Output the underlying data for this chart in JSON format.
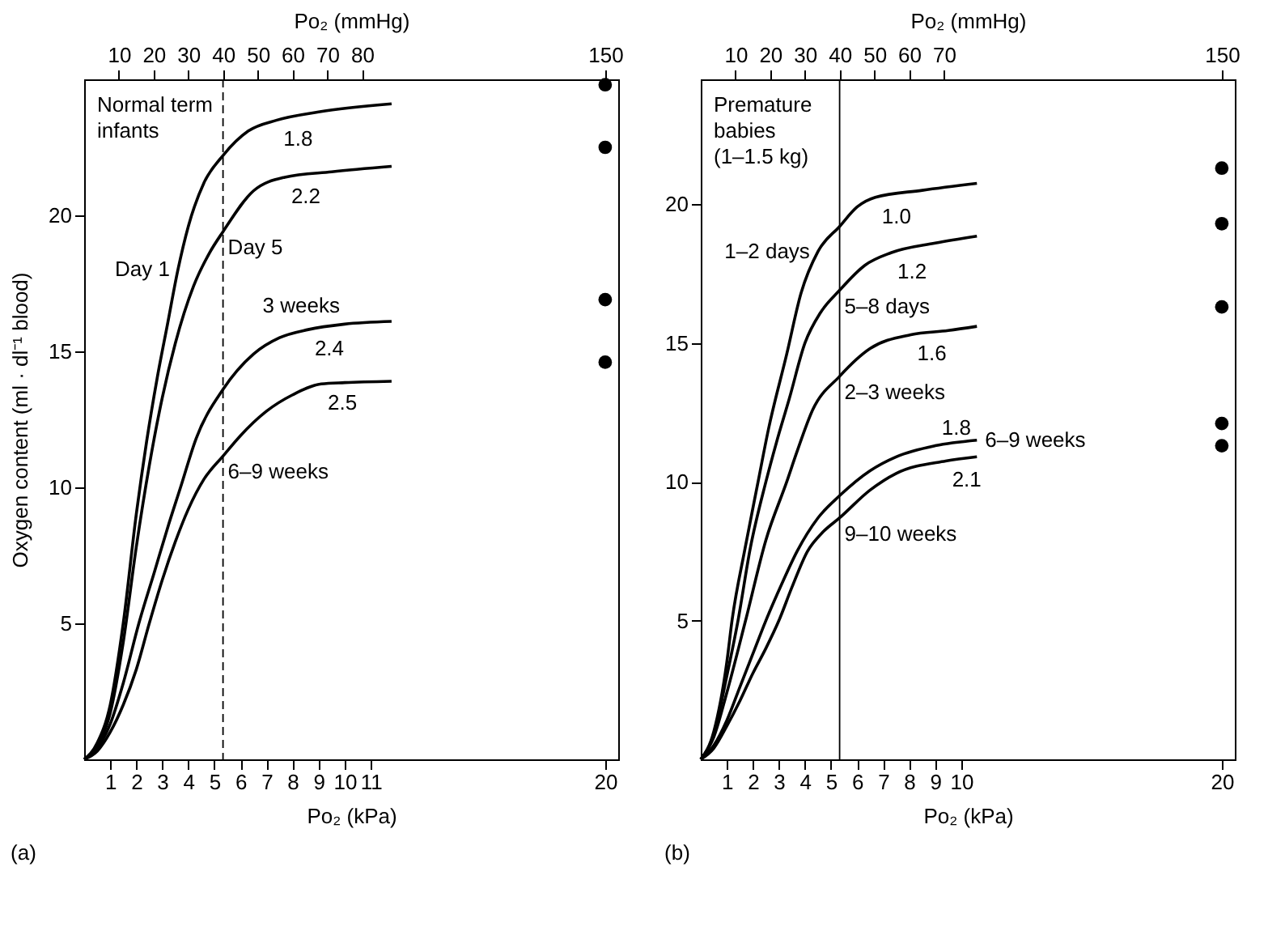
{
  "chart_data": [
    {
      "type": "line",
      "title": "(a)",
      "xlabel": "Po₂ (kPa)",
      "x2label": "Po₂ (mmHg)",
      "ylabel": "Oxygen content (ml · dl⁻¹ blood)",
      "xlim": [
        0,
        20.5
      ],
      "xticks": [
        1,
        2,
        3,
        4,
        5,
        6,
        7,
        8,
        9,
        10,
        11,
        20
      ],
      "x2lim": [
        0,
        153.75
      ],
      "x2ticks": [
        10,
        20,
        30,
        40,
        50,
        60,
        70,
        80,
        150
      ],
      "ylim": [
        0,
        25
      ],
      "yticks": [
        5,
        10,
        15,
        20
      ],
      "grid": false,
      "legend": false,
      "marker": "none",
      "line_style": "solid",
      "series": [
        {
          "name": "Day 1",
          "color": "#000000",
          "x": [
            0,
            0.5,
            1,
            1.5,
            2,
            2.4,
            2.8,
            3.2,
            3.6,
            4,
            4.6,
            5.33,
            6.3,
            7.4,
            9,
            11.8
          ],
          "values": [
            0,
            0.6,
            2,
            5,
            9,
            11.7,
            14,
            16,
            18,
            19.6,
            21.2,
            22.2,
            23.1,
            23.5,
            23.8,
            24.1
          ]
        },
        {
          "name": "Day 5",
          "color": "#000000",
          "x": [
            0,
            0.5,
            1,
            1.5,
            2,
            2.5,
            3,
            3.5,
            4.2,
            4.8,
            5.33,
            6.5,
            7.7,
            9.5,
            11.8
          ],
          "values": [
            0,
            0.5,
            1.7,
            4.3,
            7.8,
            10.8,
            13.3,
            15.3,
            17.4,
            18.6,
            19.4,
            20.9,
            21.4,
            21.6,
            21.8
          ]
        },
        {
          "name": "3 weeks",
          "color": "#000000",
          "x": [
            0,
            0.5,
            1,
            1.5,
            2.1,
            2.7,
            3.2,
            3.7,
            4.3,
            5.33,
            6.5,
            7.5,
            8.6,
            10,
            11.8
          ],
          "values": [
            0,
            0.4,
            1.3,
            2.8,
            5,
            6.9,
            8.5,
            10,
            11.8,
            13.6,
            14.9,
            15.5,
            15.8,
            16,
            16.1
          ]
        },
        {
          "name": "6–9 weeks",
          "color": "#000000",
          "x": [
            0,
            0.5,
            1,
            1.5,
            2,
            2.5,
            3,
            3.5,
            4,
            4.6,
            5.33,
            6,
            7,
            8,
            9.1,
            10,
            11.8
          ],
          "values": [
            0,
            0.3,
            1,
            2,
            3.3,
            5,
            6.6,
            8,
            9.2,
            10.3,
            11.15,
            11.9,
            12.8,
            13.4,
            13.8,
            13.85,
            13.9
          ]
        },
        {
          "type": "scatter",
          "marker": "circle",
          "color": "#000000",
          "x": [
            20,
            20,
            20,
            20
          ],
          "values": [
            24.8,
            22.5,
            16.9,
            14.6
          ]
        }
      ],
      "ref_lines": [
        {
          "axis": "x",
          "value": 5.33,
          "color": "#000000",
          "line_style": "dashed"
        }
      ],
      "annotations": [
        "Normal term infants",
        {
          "text": "1.8",
          "x": 7.4,
          "y": 23.5
        },
        {
          "text": "2.2",
          "x": 7.7,
          "y": 21.4
        },
        {
          "text": "2.4",
          "x": 8.6,
          "y": 15.8
        },
        {
          "text": "2.5",
          "x": 9.1,
          "y": 13.8
        }
      ]
    },
    {
      "type": "line",
      "title": "(b)",
      "xlabel": "Po₂ (kPa)",
      "x2label": "Po₂ (mmHg)",
      "xlim": [
        0,
        20.5
      ],
      "xticks": [
        1,
        2,
        3,
        4,
        5,
        6,
        7,
        8,
        9,
        10,
        20
      ],
      "x2lim": [
        0,
        153.75
      ],
      "x2ticks": [
        10,
        20,
        30,
        40,
        50,
        60,
        70,
        150
      ],
      "ylim": [
        0,
        24.5
      ],
      "yticks": [
        5,
        10,
        15,
        20
      ],
      "grid": false,
      "legend": false,
      "marker": "none",
      "line_style": "solid",
      "series": [
        {
          "name": "1–2 days",
          "color": "#000000",
          "x": [
            0,
            0.5,
            1,
            1.2,
            1.7,
            2.2,
            2.6,
            3.3,
            3.85,
            4.5,
            5.33,
            6,
            6.7,
            8.5,
            10.6
          ],
          "values": [
            0,
            1,
            3.5,
            5,
            7.6,
            10,
            11.9,
            14.6,
            16.8,
            18.3,
            19.2,
            19.9,
            20.25,
            20.5,
            20.75
          ]
        },
        {
          "name": "5–8 days",
          "color": "#000000",
          "x": [
            0,
            0.5,
            1,
            1.43,
            1.9,
            2.5,
            2.9,
            3.4,
            4,
            4.6,
            5.33,
            6.3,
            7.3,
            9,
            10.6
          ],
          "values": [
            0,
            0.9,
            3,
            5,
            7.6,
            10,
            11.4,
            13,
            15,
            16.1,
            16.9,
            17.8,
            18.25,
            18.6,
            18.85
          ]
        },
        {
          "name": "2–3 weeks",
          "color": "#000000",
          "x": [
            0,
            0.5,
            1,
            1.72,
            2.5,
            3.3,
            3.7,
            4.3,
            5.33,
            6.5,
            8.06,
            9.5,
            10.6
          ],
          "values": [
            0,
            0.8,
            2.4,
            5,
            7.9,
            10,
            11.1,
            12.6,
            13.8,
            14.8,
            15.3,
            15.45,
            15.6
          ]
        },
        {
          "name": "6–9 weeks",
          "color": "#000000",
          "x": [
            0,
            0.5,
            1,
            1.5,
            2,
            2.5,
            3.1,
            3.7,
            4.5,
            5.33,
            6.5,
            7.5,
            9,
            10.6
          ],
          "values": [
            0,
            0.5,
            1.4,
            2.6,
            3.8,
            5,
            6.3,
            7.5,
            8.7,
            9.5,
            10.4,
            10.9,
            11.3,
            11.5
          ]
        },
        {
          "name": "9–10 weeks",
          "color": "#000000",
          "x": [
            0,
            0.5,
            1,
            1.5,
            2,
            2.5,
            3,
            3.5,
            4.1,
            4.7,
            5.33,
            6.5,
            7.5,
            9.4,
            10.6
          ],
          "values": [
            0,
            0.4,
            1.2,
            2.1,
            3.1,
            4,
            5,
            6.2,
            7.5,
            8.2,
            8.7,
            9.7,
            10.3,
            10.75,
            10.9
          ]
        },
        {
          "type": "scatter",
          "marker": "circle",
          "color": "#000000",
          "x": [
            20,
            20,
            20,
            20,
            20
          ],
          "values": [
            21.3,
            19.3,
            16.3,
            12.1,
            11.3
          ]
        }
      ],
      "ref_lines": [
        {
          "axis": "x",
          "value": 5.33,
          "color": "#000000",
          "line_style": "solid"
        }
      ],
      "annotations": [
        "Premature babies (1–1.5 kg)",
        {
          "text": "1.0",
          "x": 6.7,
          "y": 20.25
        },
        {
          "text": "1.2",
          "x": 7.3,
          "y": 18.25
        },
        {
          "text": "1.6",
          "x": 8.06,
          "y": 15.3
        },
        {
          "text": "1.8",
          "x": 9.0,
          "y": 11.3
        },
        {
          "text": "2.1",
          "x": 9.4,
          "y": 10.75
        }
      ]
    }
  ]
}
